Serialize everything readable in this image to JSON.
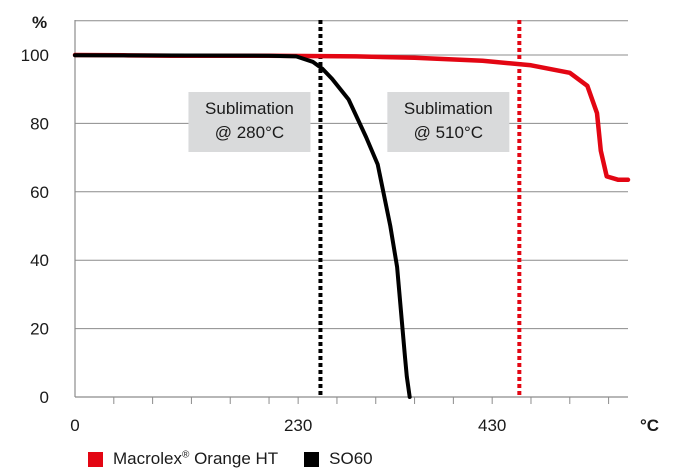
{
  "chart_data": {
    "type": "line",
    "ylabel": "%",
    "xlabel": "°C",
    "xlim": [
      0,
      570
    ],
    "ylim": [
      0,
      110
    ],
    "y_ticks": [
      0,
      20,
      40,
      60,
      80,
      100
    ],
    "x_tick_labels": [
      {
        "value": 0,
        "label": "0"
      },
      {
        "value": 230,
        "label": "230"
      },
      {
        "value": 430,
        "label": "430"
      }
    ],
    "x_minor_ticks": [
      40,
      80,
      120,
      160,
      200,
      230,
      270,
      310,
      350,
      390,
      430,
      470,
      510,
      550
    ],
    "grid": "horizontal",
    "legend_position": "bottom-left",
    "series": [
      {
        "name": "Macrolex® Orange HT",
        "color": "#e30613",
        "points": [
          [
            0,
            100
          ],
          [
            50,
            99.9
          ],
          [
            100,
            99.8
          ],
          [
            200,
            99.8
          ],
          [
            290,
            99.6
          ],
          [
            350,
            99.2
          ],
          [
            420,
            98.3
          ],
          [
            470,
            97.0
          ],
          [
            510,
            94.8
          ],
          [
            528,
            91
          ],
          [
            538,
            83
          ],
          [
            542,
            72
          ],
          [
            548,
            64.5
          ],
          [
            560,
            63.5
          ],
          [
            570,
            63.5
          ]
        ]
      },
      {
        "name": "SO60",
        "color": "#000000",
        "points": [
          [
            0,
            99.9
          ],
          [
            200,
            99.8
          ],
          [
            228,
            99.6
          ],
          [
            245,
            98
          ],
          [
            255,
            96
          ],
          [
            265,
            93
          ],
          [
            282,
            87
          ],
          [
            300,
            76
          ],
          [
            312,
            68
          ],
          [
            325,
            50
          ],
          [
            332,
            38
          ],
          [
            337,
            22
          ],
          [
            340,
            12
          ],
          [
            342,
            6
          ],
          [
            345,
            0
          ]
        ]
      }
    ],
    "vertical_markers": [
      {
        "x": 253,
        "color": "#000000",
        "label_lines": [
          "Sublimation",
          "@ 280°C"
        ]
      },
      {
        "x": 458,
        "color": "#e30613",
        "label_lines": [
          "Sublimation",
          "@ 510°C"
        ]
      }
    ]
  },
  "legend": {
    "items": [
      {
        "name": "Macrolex",
        "sup": "®",
        "rest": " Orange HT",
        "color": "#e30613"
      },
      {
        "name": "SO60",
        "sup": "",
        "rest": "",
        "color": "#000000"
      }
    ]
  }
}
